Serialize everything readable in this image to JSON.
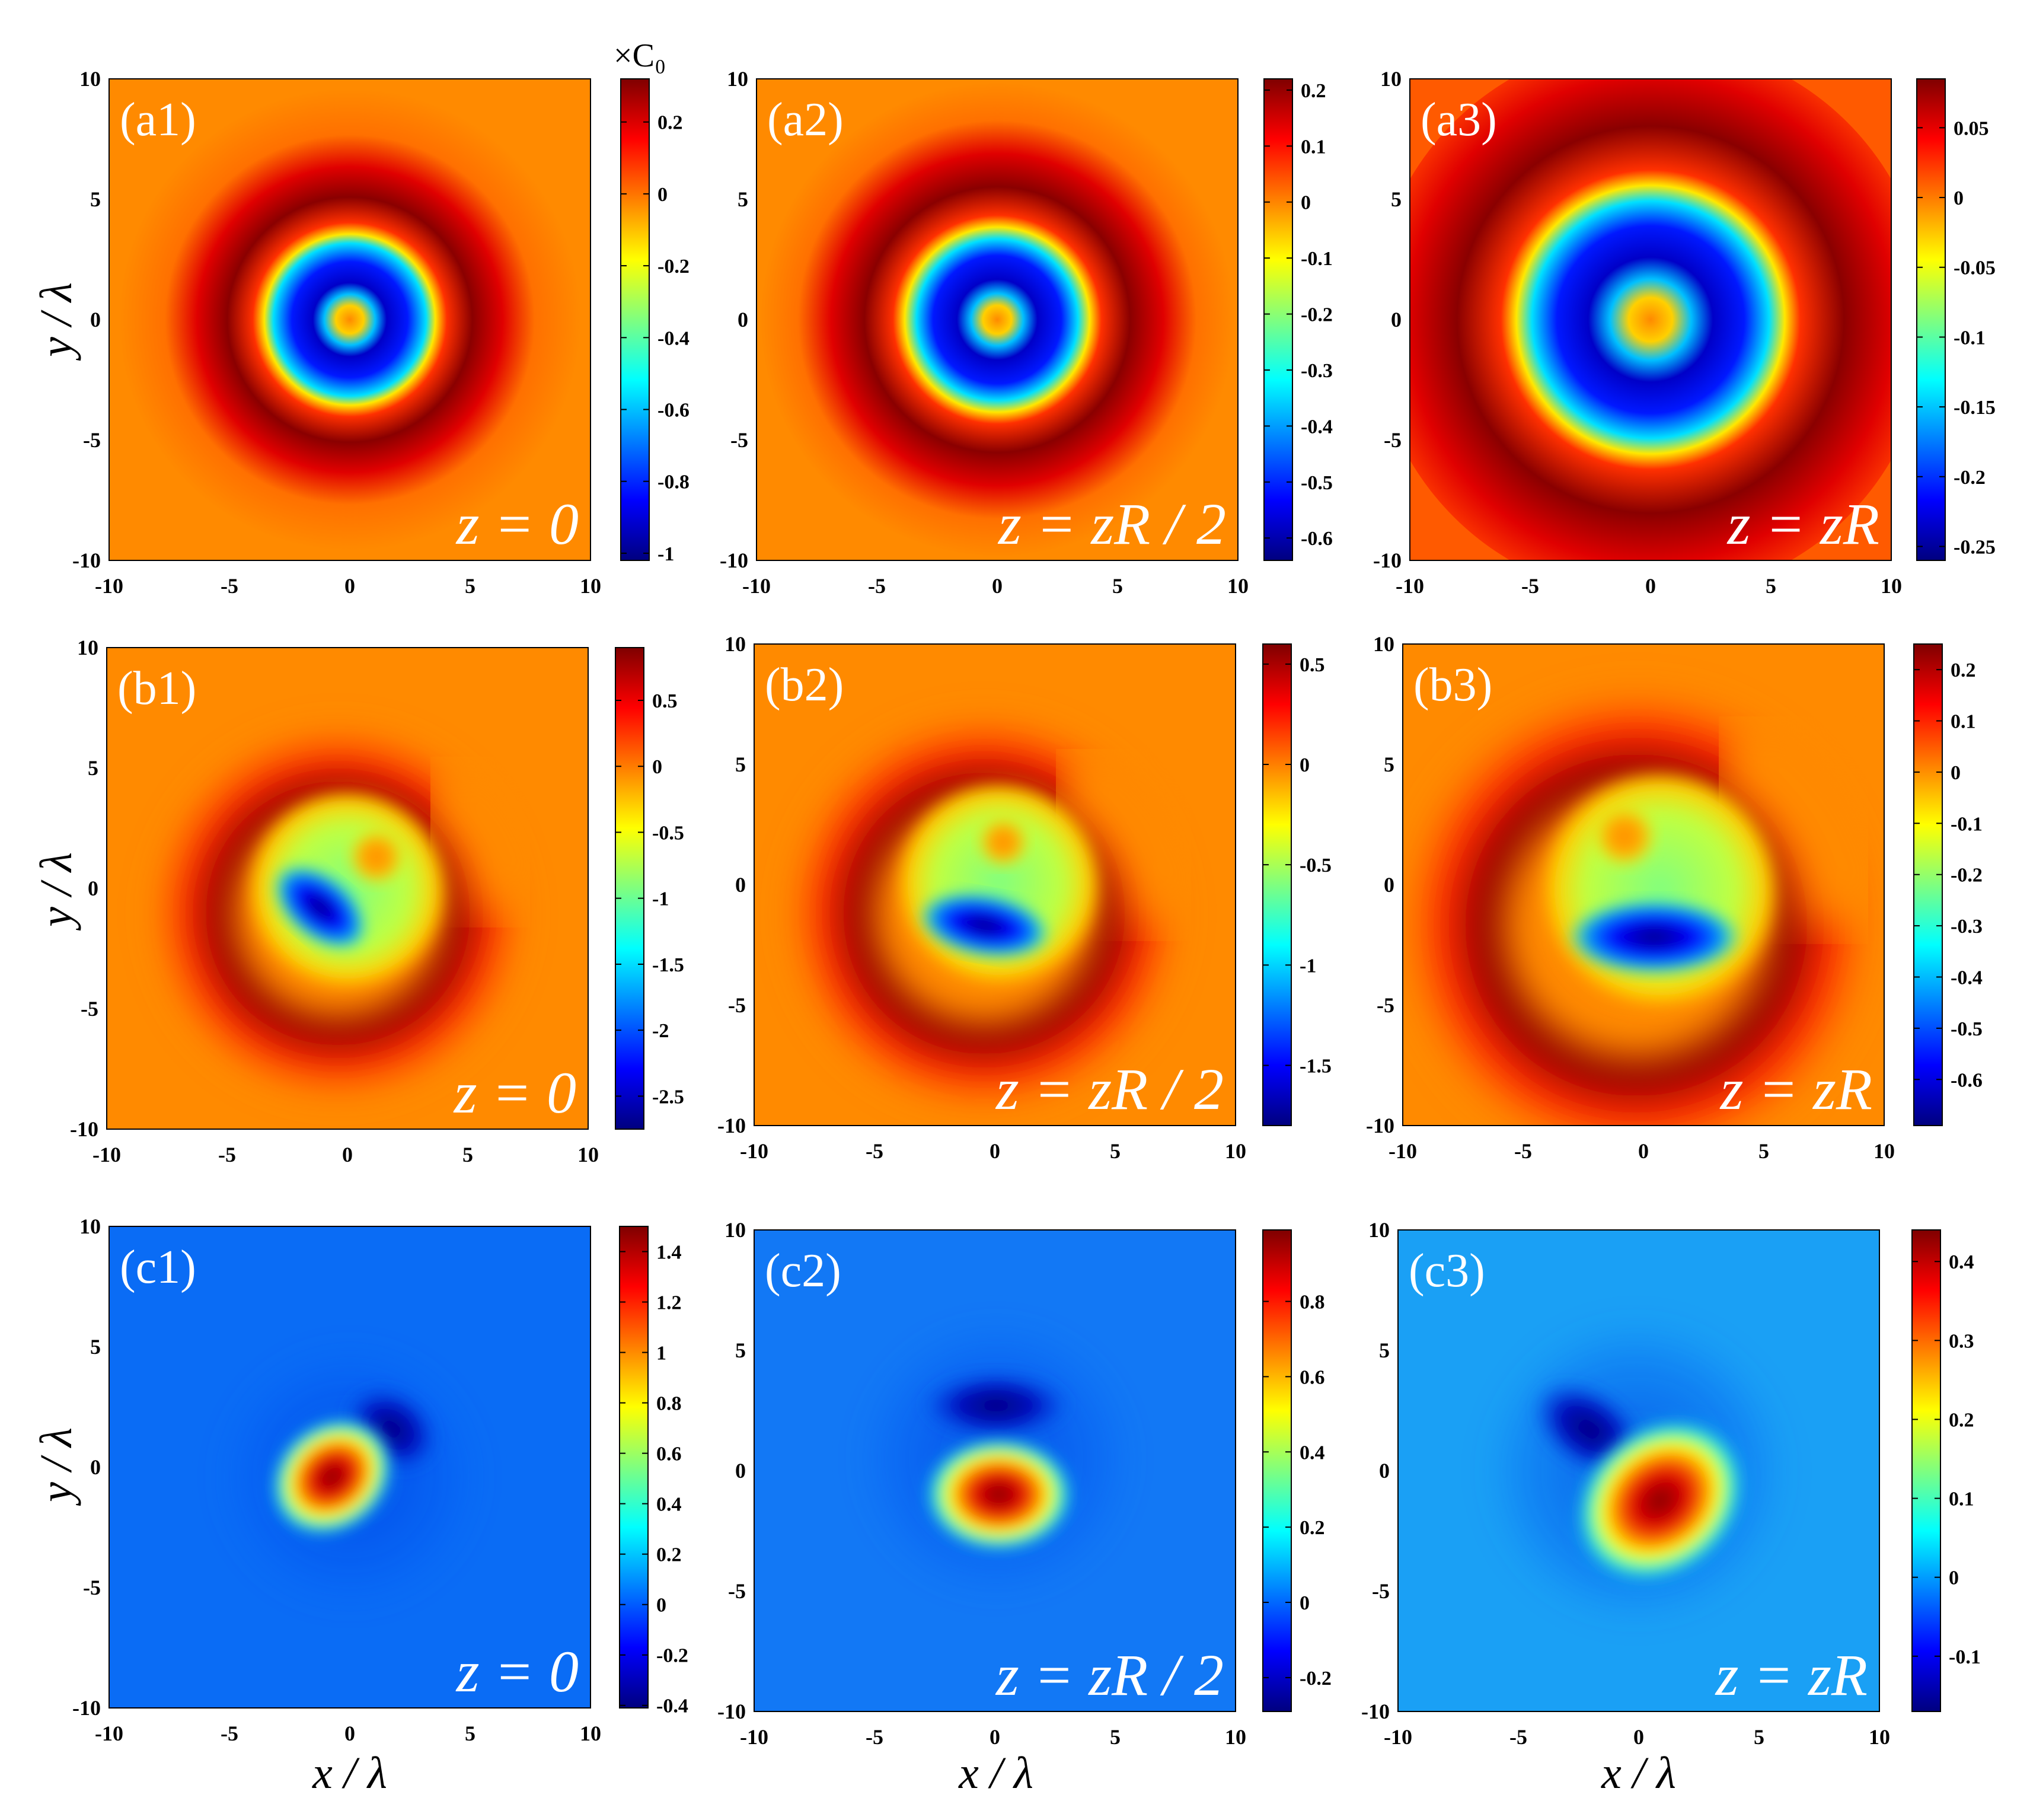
{
  "colors": {
    "jet": [
      "#00007f",
      "#0000ff",
      "#007fff",
      "#00ffff",
      "#7fff7f",
      "#ffff00",
      "#ff7f00",
      "#ff0000",
      "#7f0000"
    ]
  },
  "colorbar_units": "×C₀",
  "axis_labels": {
    "x": "x / λ",
    "y": "y / λ"
  },
  "chart_data": [
    {
      "id": "a1",
      "type": "heatmap",
      "label": "(a1)",
      "z_label": "z = 0",
      "xlim": [
        -10,
        10
      ],
      "ylim": [
        -10,
        10
      ],
      "x_ticks": [
        "-10",
        "-5",
        "0",
        "5",
        "10"
      ],
      "y_ticks": [
        "10",
        "5",
        "0",
        "-5",
        "-10"
      ],
      "clim": [
        -1.02,
        0.32
      ],
      "colorbar_ticks": [
        "0.2",
        "0",
        "-0.2",
        "-0.4",
        "-0.6",
        "-0.8",
        "-1"
      ],
      "colorbar_values": [
        0.2,
        0,
        -0.2,
        -0.4,
        -0.6,
        -0.8,
        -1
      ]
    },
    {
      "id": "a2",
      "type": "heatmap",
      "label": "(a2)",
      "z_label": "z = zR / 2",
      "xlim": [
        -10,
        10
      ],
      "ylim": [
        -10,
        10
      ],
      "x_ticks": [
        "-10",
        "-5",
        "0",
        "5",
        "10"
      ],
      "y_ticks": [
        "10",
        "5",
        "0",
        "-5",
        "-10"
      ],
      "clim": [
        -0.64,
        0.22
      ],
      "colorbar_ticks": [
        "0.2",
        "0.1",
        "0",
        "-0.1",
        "-0.2",
        "-0.3",
        "-0.4",
        "-0.5",
        "-0.6"
      ],
      "colorbar_values": [
        0.2,
        0.1,
        0,
        -0.1,
        -0.2,
        -0.3,
        -0.4,
        -0.5,
        -0.6
      ]
    },
    {
      "id": "a3",
      "type": "heatmap",
      "label": "(a3)",
      "z_label": "z = zR",
      "xlim": [
        -10,
        10
      ],
      "ylim": [
        -10,
        10
      ],
      "x_ticks": [
        "-10",
        "-5",
        "0",
        "5",
        "10"
      ],
      "y_ticks": [
        "10",
        "5",
        "0",
        "-5",
        "-10"
      ],
      "clim": [
        -0.26,
        0.085
      ],
      "colorbar_ticks": [
        "0.05",
        "0",
        "-0.05",
        "-0.1",
        "-0.15",
        "-0.2",
        "-0.25"
      ],
      "colorbar_values": [
        0.05,
        0,
        -0.05,
        -0.1,
        -0.15,
        -0.2,
        -0.25
      ]
    },
    {
      "id": "b1",
      "type": "heatmap",
      "label": "(b1)",
      "z_label": "z = 0",
      "xlim": [
        -10,
        10
      ],
      "ylim": [
        -10,
        10
      ],
      "x_ticks": [
        "-10",
        "-5",
        "0",
        "5",
        "10"
      ],
      "y_ticks": [
        "10",
        "5",
        "0",
        "-5",
        "-10"
      ],
      "clim": [
        -2.75,
        0.9
      ],
      "colorbar_ticks": [
        "0.5",
        "0",
        "-0.5",
        "-1",
        "-1.5",
        "-2",
        "-2.5"
      ],
      "colorbar_values": [
        0.5,
        0,
        -0.5,
        -1,
        -1.5,
        -2,
        -2.5
      ]
    },
    {
      "id": "b2",
      "type": "heatmap",
      "label": "(b2)",
      "z_label": "z = zR / 2",
      "xlim": [
        -10,
        10
      ],
      "ylim": [
        -10,
        10
      ],
      "x_ticks": [
        "-10",
        "-5",
        "0",
        "5",
        "10"
      ],
      "y_ticks": [
        "10",
        "5",
        "0",
        "-5",
        "-10"
      ],
      "clim": [
        -1.8,
        0.6
      ],
      "colorbar_ticks": [
        "0.5",
        "0",
        "-0.5",
        "-1",
        "-1.5"
      ],
      "colorbar_values": [
        0.5,
        0,
        -0.5,
        -1,
        -1.5
      ]
    },
    {
      "id": "b3",
      "type": "heatmap",
      "label": "(b3)",
      "z_label": "z = zR",
      "xlim": [
        -10,
        10
      ],
      "ylim": [
        -10,
        10
      ],
      "x_ticks": [
        "-10",
        "-5",
        "0",
        "5",
        "10"
      ],
      "y_ticks": [
        "10",
        "5",
        "0",
        "-5",
        "-10"
      ],
      "clim": [
        -0.69,
        0.25
      ],
      "colorbar_ticks": [
        "0.2",
        "0.1",
        "0",
        "-0.1",
        "-0.2",
        "-0.3",
        "-0.4",
        "-0.5",
        "-0.6"
      ],
      "colorbar_values": [
        0.2,
        0.1,
        0,
        -0.1,
        -0.2,
        -0.3,
        -0.4,
        -0.5,
        -0.6
      ]
    },
    {
      "id": "c1",
      "type": "heatmap",
      "label": "(c1)",
      "z_label": "z = 0",
      "xlim": [
        -10,
        10
      ],
      "ylim": [
        -10,
        10
      ],
      "x_ticks": [
        "-10",
        "-5",
        "0",
        "5",
        "10"
      ],
      "y_ticks": [
        "10",
        "5",
        "0",
        "-5",
        "-10"
      ],
      "clim": [
        -0.41,
        1.5
      ],
      "colorbar_ticks": [
        "1.4",
        "1.2",
        "1",
        "0.8",
        "0.6",
        "0.4",
        "0.2",
        "0",
        "-0.2",
        "-0.4"
      ],
      "colorbar_values": [
        1.4,
        1.2,
        1,
        0.8,
        0.6,
        0.4,
        0.2,
        0,
        -0.2,
        -0.4
      ]
    },
    {
      "id": "c2",
      "type": "heatmap",
      "label": "(c2)",
      "z_label": "z = zR / 2",
      "xlim": [
        -10,
        10
      ],
      "ylim": [
        -10,
        10
      ],
      "x_ticks": [
        "-10",
        "-5",
        "0",
        "5",
        "10"
      ],
      "y_ticks": [
        "10",
        "5",
        "0",
        "-5",
        "-10"
      ],
      "clim": [
        -0.29,
        0.99
      ],
      "colorbar_ticks": [
        "0.8",
        "0.6",
        "0.4",
        "0.2",
        "0",
        "-0.2"
      ],
      "colorbar_values": [
        0.8,
        0.6,
        0.4,
        0.2,
        0,
        -0.2
      ]
    },
    {
      "id": "c3",
      "type": "heatmap",
      "label": "(c3)",
      "z_label": "z = zR",
      "xlim": [
        -10,
        10
      ],
      "ylim": [
        -10,
        10
      ],
      "x_ticks": [
        "-10",
        "-5",
        "0",
        "5",
        "10"
      ],
      "y_ticks": [
        "10",
        "5",
        "0",
        "-5",
        "-10"
      ],
      "clim": [
        -0.17,
        0.44
      ],
      "colorbar_ticks": [
        "0.4",
        "0.3",
        "0.2",
        "0.1",
        "0",
        "-0.1"
      ],
      "colorbar_values": [
        0.4,
        0.3,
        0.2,
        0.1,
        0,
        -0.1
      ]
    }
  ]
}
